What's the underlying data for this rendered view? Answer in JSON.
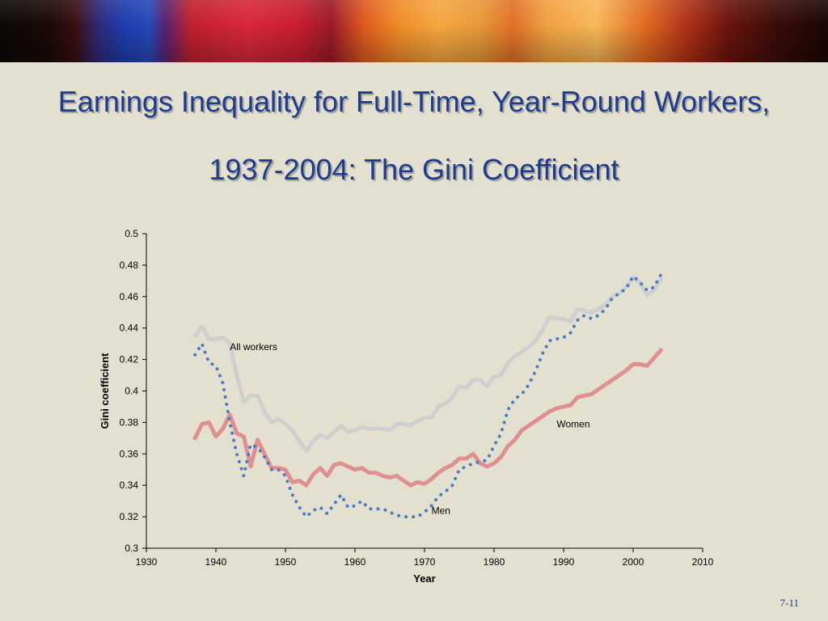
{
  "slide": {
    "title": "Earnings Inequality for Full-Time, Year-Round Workers, 1937-2004: The Gini Coefficient",
    "number": "7-11",
    "title_color": "#1f3b8f",
    "background_color": "#e4e0d0"
  },
  "chart_data": {
    "type": "line",
    "title": "",
    "xlabel": "Year",
    "ylabel": "Gini coefficient",
    "xlim": [
      1930,
      2010
    ],
    "ylim": [
      0.3,
      0.5
    ],
    "xticks": [
      1930,
      1940,
      1950,
      1960,
      1970,
      1980,
      1990,
      2000,
      2010
    ],
    "yticks": [
      0.3,
      0.32,
      0.34,
      0.36,
      0.38,
      0.4,
      0.42,
      0.44,
      0.46,
      0.48,
      0.5
    ],
    "grid": false,
    "legend": "inline labels",
    "series": [
      {
        "name": "All workers",
        "color": "#cfcfcf",
        "style": "solid",
        "label_at": [
          1942,
          0.428
        ],
        "x": [
          1937,
          1938,
          1939,
          1940,
          1941,
          1942,
          1943,
          1944,
          1945,
          1946,
          1947,
          1948,
          1949,
          1950,
          1951,
          1952,
          1953,
          1954,
          1955,
          1956,
          1957,
          1958,
          1959,
          1960,
          1961,
          1962,
          1963,
          1964,
          1965,
          1966,
          1967,
          1968,
          1969,
          1970,
          1971,
          1972,
          1973,
          1974,
          1975,
          1976,
          1977,
          1978,
          1979,
          1980,
          1981,
          1982,
          1983,
          1984,
          1985,
          1986,
          1987,
          1988,
          1989,
          1990,
          1991,
          1992,
          1993,
          1994,
          1995,
          1996,
          1997,
          1998,
          1999,
          2000,
          2001,
          2002,
          2003,
          2004
        ],
        "values": [
          0.435,
          0.441,
          0.433,
          0.433,
          0.434,
          0.43,
          0.41,
          0.393,
          0.397,
          0.397,
          0.387,
          0.38,
          0.382,
          0.379,
          0.375,
          0.368,
          0.362,
          0.368,
          0.372,
          0.37,
          0.374,
          0.378,
          0.374,
          0.375,
          0.377,
          0.376,
          0.376,
          0.376,
          0.375,
          0.379,
          0.379,
          0.378,
          0.381,
          0.383,
          0.383,
          0.39,
          0.392,
          0.396,
          0.403,
          0.402,
          0.407,
          0.407,
          0.403,
          0.409,
          0.41,
          0.418,
          0.422,
          0.425,
          0.428,
          0.432,
          0.439,
          0.447,
          0.446,
          0.446,
          0.444,
          0.452,
          0.451,
          0.45,
          0.452,
          0.455,
          0.46,
          0.462,
          0.466,
          0.472,
          0.469,
          0.461,
          0.464,
          0.471
        ]
      },
      {
        "name": "Women",
        "color": "#df8f90",
        "style": "solid",
        "label_at": [
          1989,
          0.379
        ],
        "x": [
          1937,
          1938,
          1939,
          1940,
          1941,
          1942,
          1943,
          1944,
          1945,
          1946,
          1947,
          1948,
          1949,
          1950,
          1951,
          1952,
          1953,
          1954,
          1955,
          1956,
          1957,
          1958,
          1959,
          1960,
          1961,
          1962,
          1963,
          1964,
          1965,
          1966,
          1967,
          1968,
          1969,
          1970,
          1971,
          1972,
          1973,
          1974,
          1975,
          1976,
          1977,
          1978,
          1979,
          1980,
          1981,
          1982,
          1983,
          1984,
          1985,
          1986,
          1987,
          1988,
          1989,
          1990,
          1991,
          1992,
          1993,
          1994,
          1995,
          1996,
          1997,
          1998,
          1999,
          2000,
          2001,
          2002,
          2003,
          2004
        ],
        "values": [
          0.37,
          0.379,
          0.38,
          0.371,
          0.376,
          0.385,
          0.373,
          0.371,
          0.352,
          0.369,
          0.36,
          0.351,
          0.351,
          0.35,
          0.342,
          0.343,
          0.34,
          0.347,
          0.351,
          0.346,
          0.353,
          0.354,
          0.352,
          0.35,
          0.351,
          0.348,
          0.348,
          0.346,
          0.345,
          0.346,
          0.343,
          0.34,
          0.342,
          0.341,
          0.344,
          0.348,
          0.351,
          0.353,
          0.357,
          0.357,
          0.36,
          0.354,
          0.352,
          0.354,
          0.358,
          0.365,
          0.369,
          0.375,
          0.378,
          0.381,
          0.384,
          0.387,
          0.389,
          0.39,
          0.391,
          0.396,
          0.397,
          0.398,
          0.401,
          0.404,
          0.407,
          0.41,
          0.413,
          0.417,
          0.417,
          0.416,
          0.421,
          0.426
        ]
      },
      {
        "name": "Men",
        "color": "#4a7cc4",
        "style": "dotted",
        "label_at": [
          1971,
          0.324
        ],
        "x": [
          1937,
          1938,
          1939,
          1940,
          1941,
          1942,
          1943,
          1944,
          1945,
          1946,
          1947,
          1948,
          1949,
          1950,
          1951,
          1952,
          1953,
          1954,
          1955,
          1956,
          1957,
          1958,
          1959,
          1960,
          1961,
          1962,
          1963,
          1964,
          1965,
          1966,
          1967,
          1968,
          1969,
          1970,
          1971,
          1972,
          1973,
          1974,
          1975,
          1976,
          1977,
          1978,
          1979,
          1980,
          1981,
          1982,
          1983,
          1984,
          1985,
          1986,
          1987,
          1988,
          1989,
          1990,
          1991,
          1992,
          1993,
          1994,
          1995,
          1996,
          1997,
          1998,
          1999,
          2000,
          2001,
          2002,
          2003,
          2004
        ],
        "values": [
          0.423,
          0.43,
          0.418,
          0.416,
          0.405,
          0.38,
          0.36,
          0.346,
          0.366,
          0.364,
          0.358,
          0.35,
          0.35,
          0.346,
          0.334,
          0.326,
          0.32,
          0.324,
          0.326,
          0.322,
          0.328,
          0.334,
          0.326,
          0.327,
          0.33,
          0.325,
          0.325,
          0.325,
          0.323,
          0.321,
          0.32,
          0.32,
          0.32,
          0.323,
          0.327,
          0.333,
          0.336,
          0.34,
          0.35,
          0.352,
          0.354,
          0.355,
          0.356,
          0.365,
          0.373,
          0.388,
          0.395,
          0.398,
          0.404,
          0.413,
          0.424,
          0.432,
          0.433,
          0.434,
          0.437,
          0.445,
          0.448,
          0.446,
          0.448,
          0.452,
          0.459,
          0.462,
          0.465,
          0.473,
          0.469,
          0.464,
          0.466,
          0.474
        ]
      }
    ]
  }
}
